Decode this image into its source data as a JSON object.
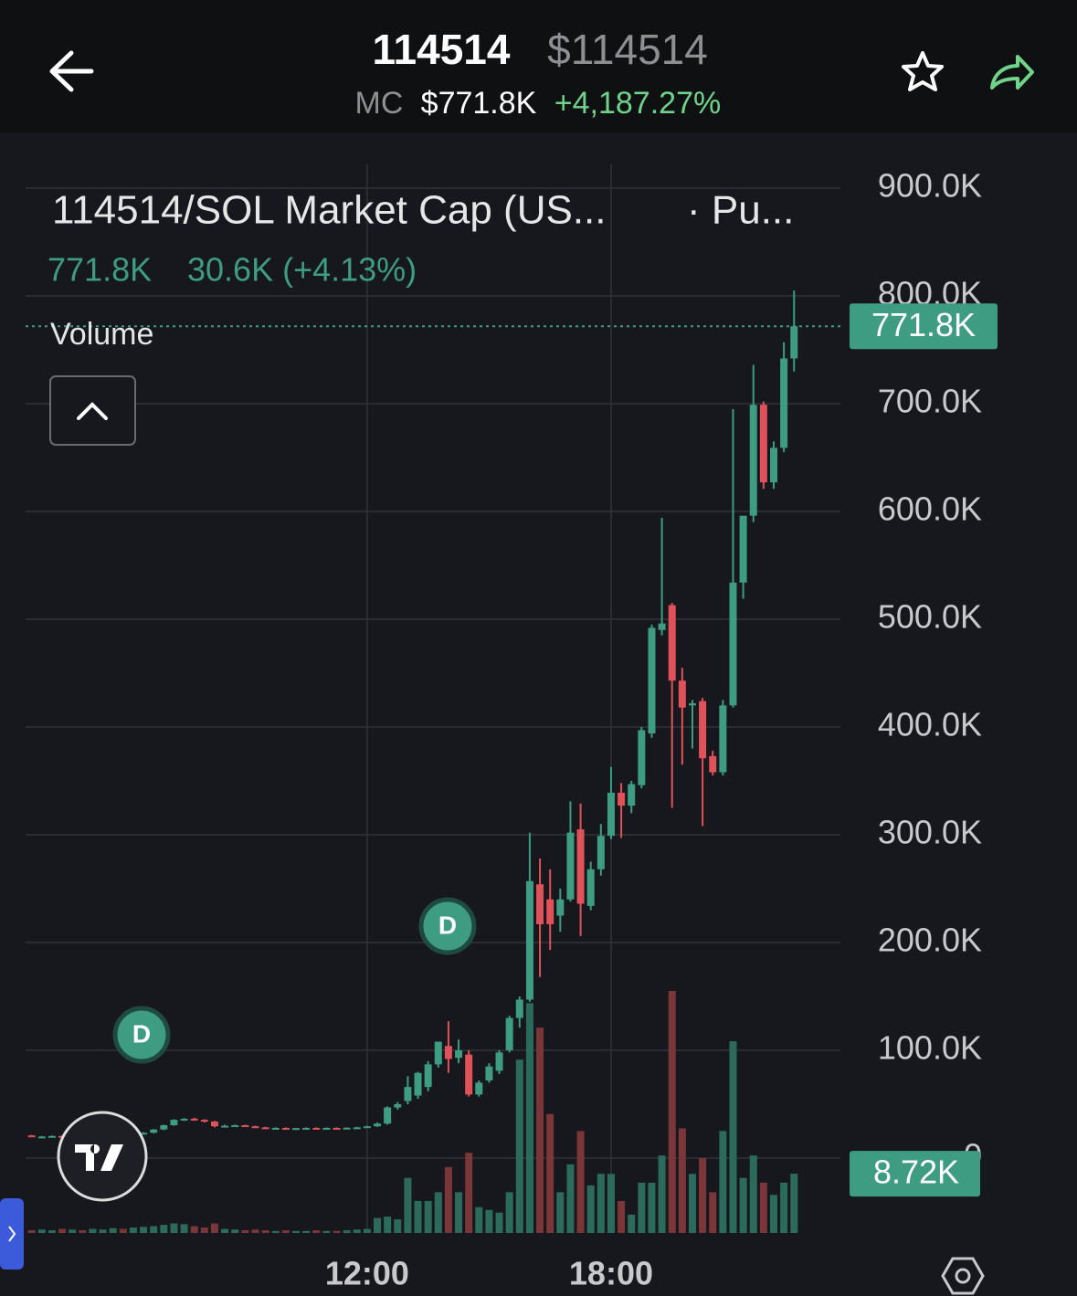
{
  "header": {
    "title": "114514",
    "price": "$114514",
    "mc_label": "MC",
    "mc": "$771.8K",
    "change": "+4,187.27%"
  },
  "chart_data": {
    "type": "candlestick",
    "title": "114514/SOL Market Cap (US...",
    "subtitle": "· Pu...",
    "legend_value": "771.8K",
    "legend_change": "30.6K (+4.13%)",
    "volume_title": "Volume",
    "annotations": [
      "D",
      "D"
    ],
    "x": [
      3.75,
      4,
      4.25,
      4.5,
      4.75,
      5,
      5.25,
      5.5,
      5.75,
      6,
      6.25,
      6.5,
      6.75,
      7,
      7.25,
      7.5,
      7.75,
      8,
      8.25,
      8.5,
      8.75,
      9,
      9.25,
      9.5,
      9.75,
      10,
      10.25,
      10.5,
      10.75,
      11,
      11.25,
      11.5,
      11.75,
      12,
      12.25,
      12.5,
      12.75,
      13,
      13.25,
      13.5,
      13.75,
      14,
      14.25,
      14.5,
      14.75,
      15,
      15.25,
      15.5,
      15.75,
      16,
      16.25,
      16.5,
      16.75,
      17,
      17.25,
      17.5,
      17.75,
      18,
      18.25,
      18.5,
      18.75,
      19,
      19.25,
      19.5,
      19.75,
      20,
      20.25,
      20.5,
      20.75,
      21,
      21.25,
      21.5,
      21.75,
      22,
      22.25,
      22.5
    ],
    "open": [
      21,
      20,
      20,
      20.5,
      20,
      20.5,
      20,
      20.5,
      21,
      21.5,
      21,
      22.5,
      23.5,
      26.5,
      30.5,
      35.5,
      36.5,
      35.5,
      34,
      29.5,
      30,
      30.5,
      29.5,
      28.5,
      27.5,
      28,
      27.5,
      27.8,
      28,
      27.6,
      28,
      27.8,
      28.2,
      28.5,
      29.5,
      32,
      47,
      53,
      58,
      66,
      87,
      104,
      93,
      96,
      59,
      72,
      81,
      100,
      130,
      147,
      254,
      240,
      225,
      240,
      305,
      234,
      268,
      299,
      339,
      327,
      346,
      394,
      490,
      513,
      443,
      420,
      424,
      373,
      358,
      420,
      534,
      596,
      699,
      627,
      659,
      742
    ],
    "high": [
      21.5,
      20.5,
      21,
      21,
      21,
      21,
      21,
      21,
      22,
      22,
      23,
      24,
      27,
      31,
      36,
      37,
      37.5,
      36,
      34.5,
      31,
      31,
      31,
      30,
      29,
      28.5,
      28.5,
      28,
      28.5,
      28.5,
      28.5,
      28.5,
      28.5,
      29,
      30,
      33,
      48,
      52,
      76,
      80,
      90,
      108,
      127,
      110,
      100,
      72,
      88,
      100,
      132,
      150,
      302,
      278,
      268,
      250,
      331,
      329,
      275,
      310,
      363,
      348,
      350,
      400,
      495,
      594,
      515,
      455,
      425,
      427,
      378,
      425,
      695,
      596,
      736,
      702,
      665,
      757,
      805
    ],
    "low": [
      20,
      19.5,
      19.5,
      19.5,
      19.5,
      20,
      19.5,
      20,
      20.5,
      20.5,
      21,
      22,
      23,
      26,
      30,
      34.5,
      35,
      33,
      28.5,
      28.5,
      29,
      29,
      28,
      27,
      27,
      27,
      27,
      27.2,
      27.3,
      27.2,
      27.4,
      27.2,
      27.8,
      28,
      29,
      31,
      45,
      50,
      55,
      62,
      84,
      79,
      88,
      57,
      57,
      70,
      78,
      98,
      121,
      145,
      168,
      193,
      210,
      238,
      206,
      230,
      262,
      296,
      297,
      320,
      343,
      390,
      485,
      325,
      365,
      380,
      308,
      355,
      355,
      418,
      519,
      590,
      621,
      621,
      655,
      730
    ],
    "close": [
      20,
      20,
      20.5,
      20,
      20.5,
      20,
      20.5,
      21,
      21.5,
      21,
      22.5,
      23.5,
      26.5,
      30.5,
      35.5,
      36.5,
      35.5,
      34,
      29.5,
      30,
      30.5,
      29.5,
      28.5,
      27.5,
      28,
      27.5,
      27.8,
      28,
      27.6,
      28,
      27.8,
      28.2,
      28.5,
      29.5,
      32,
      47,
      50,
      66,
      79,
      87,
      108,
      92,
      100,
      59,
      70,
      85,
      98,
      130,
      147,
      257,
      217,
      217,
      240,
      302,
      236,
      268,
      299,
      339,
      327,
      347,
      397,
      492,
      496,
      443,
      418,
      422,
      371,
      358,
      420,
      534,
      596,
      699,
      627,
      659,
      742,
      771.8
    ],
    "volume": [
      0.4,
      0.5,
      0.4,
      0.6,
      0.5,
      0.4,
      0.6,
      0.5,
      0.7,
      0.6,
      0.8,
      0.9,
      1.0,
      1.2,
      1.4,
      1.3,
      1.0,
      0.8,
      1.4,
      0.6,
      0.5,
      0.4,
      0.5,
      0.4,
      0.3,
      0.4,
      0.3,
      0.3,
      0.4,
      0.3,
      0.3,
      0.4,
      0.5,
      0.6,
      2.2,
      2.4,
      2.0,
      8.1,
      4.7,
      4.7,
      6.0,
      9.7,
      6.0,
      11.8,
      3.8,
      3.4,
      3.0,
      6.0,
      25.5,
      33.8,
      30.2,
      17.5,
      6.0,
      10.1,
      15.0,
      7.0,
      8.7,
      8.7,
      4.7,
      2.7,
      7.4,
      7.4,
      11.4,
      35.6,
      15.4,
      8.7,
      11.0,
      6.0,
      15.0,
      28.2,
      8.1,
      11.4,
      7.4,
      5.6,
      7.4,
      8.72
    ],
    "up_color": "#3e9c82",
    "down_color": "#e0525a",
    "volume_up_color": "#2c6b5c",
    "volume_down_color": "#7a3639",
    "xlim": [
      3.6,
      23.64
    ],
    "xticks": [
      {
        "value": 12,
        "label": "12:00"
      },
      {
        "value": 18,
        "label": "18:00"
      }
    ],
    "ylim": [
      -69.5,
      922
    ],
    "yticks": [
      0,
      {
        "value": 100,
        "label": "100.0K"
      },
      {
        "value": 200,
        "label": "200.0K"
      },
      {
        "value": 300,
        "label": "300.0K"
      },
      {
        "value": 400,
        "label": "400.0K"
      },
      {
        "value": 500,
        "label": "500.0K"
      },
      {
        "value": 600,
        "label": "600.0K"
      },
      {
        "value": 700,
        "label": "700.0K"
      },
      {
        "value": 800,
        "label": "800.0K"
      },
      {
        "value": 900,
        "label": "900.0K"
      }
    ],
    "volume_ylim": [
      0,
      36
    ],
    "price_line": {
      "value": 771.8,
      "label": "771.8K"
    },
    "volume_line": {
      "value": 8.72,
      "label": "8.72K"
    },
    "grid": true
  }
}
